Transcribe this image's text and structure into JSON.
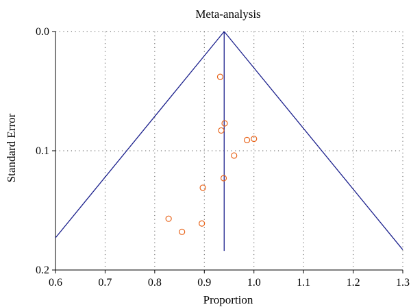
{
  "chart_data": {
    "type": "scatter",
    "title": "Meta-analysis",
    "xlabel": "Proportion",
    "ylabel": "Standard Error",
    "xlim": [
      0.6,
      1.3
    ],
    "ylim": [
      0.0,
      0.2
    ],
    "y_inverted": true,
    "grid": true,
    "x_ticks": [
      "0.6",
      "0.7",
      "0.8",
      "0.9",
      "1.0",
      "1.1",
      "1.2",
      "1.3"
    ],
    "y_ticks": [
      "0.0",
      "0.1",
      "0.2"
    ],
    "x_tick_values": [
      0.6,
      0.7,
      0.8,
      0.9,
      1.0,
      1.1,
      1.2,
      1.3
    ],
    "y_tick_values": [
      0.0,
      0.1,
      0.2
    ],
    "pooled_estimate": 0.94,
    "funnel": {
      "apex": [
        0.94,
        0.0
      ],
      "left_end": [
        0.6,
        0.173
      ],
      "right_end": [
        1.3,
        0.183
      ],
      "center_line_end": [
        0.94,
        0.184
      ]
    },
    "points": [
      {
        "x": 0.932,
        "y": 0.038
      },
      {
        "x": 0.941,
        "y": 0.077
      },
      {
        "x": 0.934,
        "y": 0.083
      },
      {
        "x": 0.986,
        "y": 0.091
      },
      {
        "x": 1.0,
        "y": 0.09
      },
      {
        "x": 0.96,
        "y": 0.104
      },
      {
        "x": 0.939,
        "y": 0.123
      },
      {
        "x": 0.897,
        "y": 0.131
      },
      {
        "x": 0.828,
        "y": 0.157
      },
      {
        "x": 0.895,
        "y": 0.161
      },
      {
        "x": 0.855,
        "y": 0.168
      }
    ],
    "colors": {
      "funnel_line": "#1a1f8c",
      "points": "#e8641b",
      "grid": "#555555",
      "axis": "#000000"
    }
  }
}
